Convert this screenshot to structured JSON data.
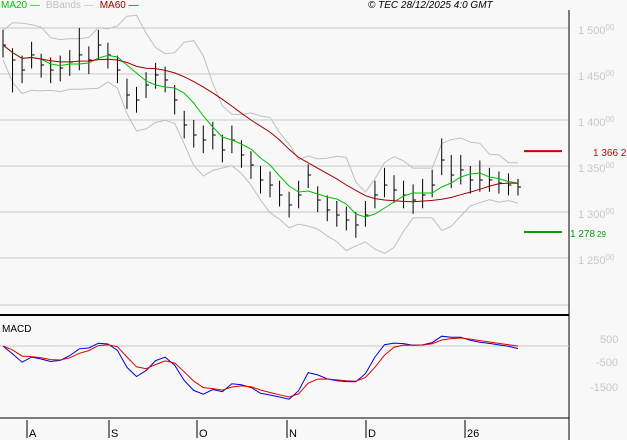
{
  "legend": [
    {
      "label": "MA20",
      "color": "#00c000"
    },
    {
      "label": "BBands",
      "color": "#c0c0c0"
    },
    {
      "label": "MA60",
      "color": "#a00000"
    }
  ],
  "copyright": "© TEC 28/12/2025 4:0 GMT",
  "chart_data": [
    {
      "type": "bar",
      "subtype": "ohlc",
      "ylim": [
        1200,
        1525
      ],
      "yticks": [
        {
          "main": "1 500",
          "dec": "00",
          "v": 1500
        },
        {
          "main": "1 450",
          "dec": "00",
          "v": 1450
        },
        {
          "main": "1 400",
          "dec": "00",
          "v": 1400
        },
        {
          "main": "1 350",
          "dec": "00",
          "v": 1350
        },
        {
          "main": "1 300",
          "dec": "00",
          "v": 1300
        },
        {
          "main": "1 250",
          "dec": "00",
          "v": 1250
        }
      ],
      "grid": true,
      "close": [
        1481.5,
        1465.2,
        1454.3,
        1470.7,
        1459.8,
        1454.3,
        1456.5,
        1463.0,
        1470.7,
        1465.2,
        1481.5,
        1470.7,
        1454.3,
        1427.2,
        1421.7,
        1438.0,
        1448.9,
        1443.5,
        1421.7,
        1394.6,
        1383.7,
        1378.3,
        1383.7,
        1367.4,
        1378.3,
        1362.0,
        1351.1,
        1334.8,
        1329.3,
        1318.5,
        1307.6,
        1318.5,
        1340.2,
        1313.0,
        1302.2,
        1296.7,
        1291.3,
        1285.9,
        1296.7,
        1318.5,
        1329.3,
        1323.9,
        1318.5,
        1313.0,
        1318.5,
        1329.3,
        1356.5,
        1340.2,
        1345.7,
        1334.8,
        1334.8,
        1334.8,
        1331.5,
        1329.3,
        1327.2
      ],
      "high": [
        1498,
        1478,
        1470,
        1485,
        1472,
        1468,
        1470,
        1476,
        1500,
        1480,
        1498,
        1484,
        1470,
        1445,
        1436,
        1452,
        1462,
        1458,
        1438,
        1410,
        1400,
        1394,
        1398,
        1384,
        1394,
        1378,
        1366,
        1350,
        1344,
        1334,
        1322,
        1334,
        1352,
        1328,
        1318,
        1312,
        1306,
        1300,
        1312,
        1334,
        1348,
        1340,
        1334,
        1330,
        1336,
        1346,
        1380,
        1362,
        1362,
        1350,
        1356,
        1348,
        1344,
        1342,
        1336
      ],
      "low": [
        1468,
        1430,
        1440,
        1456,
        1446,
        1440,
        1442,
        1448,
        1454,
        1450,
        1466,
        1456,
        1440,
        1412,
        1408,
        1424,
        1434,
        1430,
        1406,
        1380,
        1370,
        1364,
        1368,
        1354,
        1364,
        1348,
        1336,
        1320,
        1316,
        1306,
        1294,
        1304,
        1326,
        1300,
        1290,
        1284,
        1280,
        1272,
        1284,
        1304,
        1316,
        1310,
        1304,
        1298,
        1304,
        1316,
        1340,
        1326,
        1330,
        1320,
        1322,
        1322,
        1320,
        1318,
        1318
      ],
      "markers": [
        {
          "label": "1 366 2",
          "value": 1366.2,
          "color": "#d00000"
        },
        {
          "label": "1 278",
          "dec": "29",
          "value": 1278.29,
          "color": "#00a000"
        }
      ]
    },
    {
      "type": "line",
      "title": "MACD",
      "yticks": [
        "500",
        "-500",
        "-1500"
      ],
      "series_colors": [
        "#0000e0",
        "#e00000"
      ]
    }
  ],
  "xticks": [
    "A",
    "S",
    "O",
    "N",
    "D",
    "26"
  ]
}
